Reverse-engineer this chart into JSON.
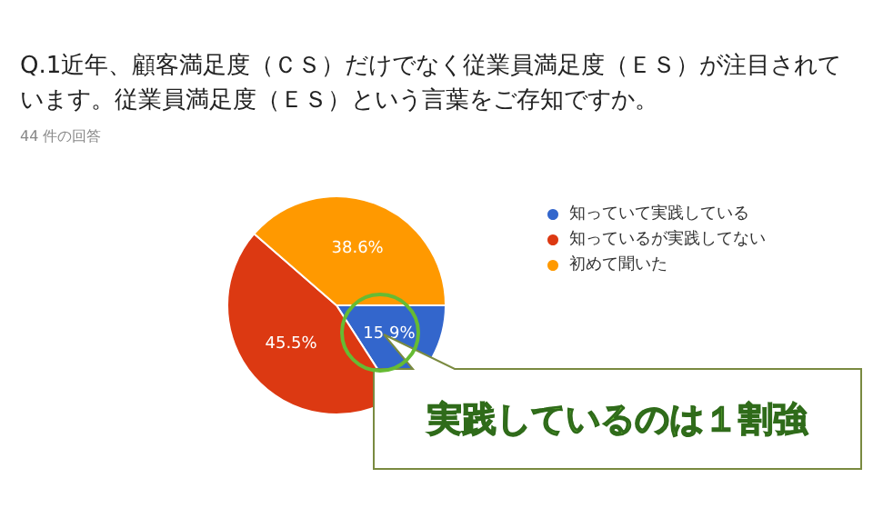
{
  "chart_data": {
    "type": "pie",
    "title": "Q.1近年、顧客満足度（ＣＳ）だけでなく従業員満足度（ＥＳ）が注目されています。従業員満足度（ＥＳ）という言葉をご存知ですか。",
    "subtitle": "44 件の回答",
    "categories": [
      "知っていて実践している",
      "知っているが実践してない",
      "初めて聞いた"
    ],
    "values": [
      15.9,
      45.5,
      38.6
    ],
    "colors": [
      "#3366cc",
      "#dc3912",
      "#ff9900"
    ],
    "value_labels": [
      "15.9%",
      "45.5%",
      "38.6%"
    ],
    "legend": "top right",
    "annotations": [
      "実践しているのは１割強"
    ]
  }
}
